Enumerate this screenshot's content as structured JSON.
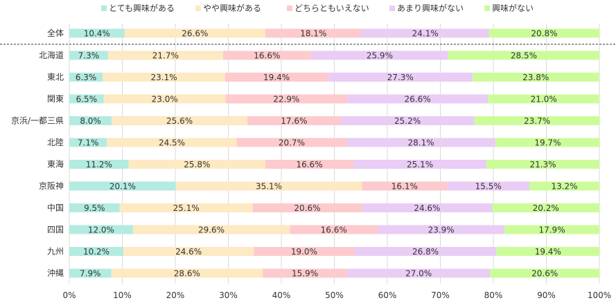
{
  "chart_data": {
    "type": "bar",
    "stacked": true,
    "orientation": "horizontal",
    "percent": true,
    "legend_position": "top",
    "categories": [
      "全体",
      "北海道",
      "東北",
      "関東",
      "京浜/一都三県",
      "北陸",
      "東海",
      "京阪神",
      "中国",
      "四国",
      "九州",
      "沖縄"
    ],
    "series": [
      {
        "name": "とても興味がある",
        "color": "#b3ebe0",
        "values": [
          10.4,
          7.3,
          6.3,
          6.5,
          8.0,
          7.1,
          11.2,
          20.1,
          9.5,
          12.0,
          10.2,
          7.9
        ]
      },
      {
        "name": "やや興味がある",
        "color": "#fde9c2",
        "values": [
          26.6,
          21.7,
          23.1,
          23.0,
          25.6,
          24.5,
          25.8,
          35.1,
          25.1,
          29.6,
          24.6,
          28.6
        ]
      },
      {
        "name": "どちらともいえない",
        "color": "#fdcacd",
        "values": [
          18.1,
          16.6,
          19.4,
          22.9,
          17.6,
          20.7,
          16.6,
          16.1,
          20.6,
          16.6,
          19.0,
          15.9
        ]
      },
      {
        "name": "あまり興味がない",
        "color": "#e9cdf5",
        "values": [
          24.1,
          25.9,
          27.3,
          26.6,
          25.2,
          28.1,
          25.1,
          15.5,
          24.6,
          23.9,
          26.8,
          27.0
        ]
      },
      {
        "name": "興味がない",
        "color": "#ccfc9a",
        "values": [
          20.8,
          28.5,
          23.8,
          21.0,
          23.7,
          19.7,
          21.3,
          13.2,
          20.2,
          17.9,
          19.4,
          20.6
        ]
      }
    ],
    "data_labels": [
      [
        "10.4%",
        "7.3%",
        "6.3%",
        "6.5%",
        "8.0%",
        "7.1%",
        "11.2%",
        "20.1%",
        "9.5%",
        "12.0%",
        "10.2%",
        "7.9%"
      ],
      [
        "26.6%",
        "21.7%",
        "23.1%",
        "23.0%",
        "25.6%",
        "24.5%",
        "25.8%",
        "35.1%",
        "25.1%",
        "29.6%",
        "24.6%",
        "28.6%"
      ],
      [
        "18.1%",
        "16.6%",
        "19.4%",
        "22.9%",
        "17.6%",
        "20.7%",
        "16.6%",
        "16.1%",
        "20.6%",
        "16.6%",
        "19.0%",
        "15.9%"
      ],
      [
        "24.1%",
        "25.9%",
        "27.3%",
        "26.6%",
        "25.2%",
        "28.1%",
        "25.1%",
        "15.5%",
        "24.6%",
        "23.9%",
        "26.8%",
        "27.0%"
      ],
      [
        "20.8%",
        "28.5%",
        "23.8%",
        "21.0%",
        "23.7%",
        "19.7%",
        "21.3%",
        "13.2%",
        "20.2%",
        "17.9%",
        "19.4%",
        "20.6%"
      ]
    ],
    "x_ticks": [
      "0%",
      "10%",
      "20%",
      "30%",
      "40%",
      "50%",
      "60%",
      "70%",
      "80%",
      "90%",
      "100%"
    ],
    "xlim": [
      0,
      100
    ],
    "grid": true
  }
}
